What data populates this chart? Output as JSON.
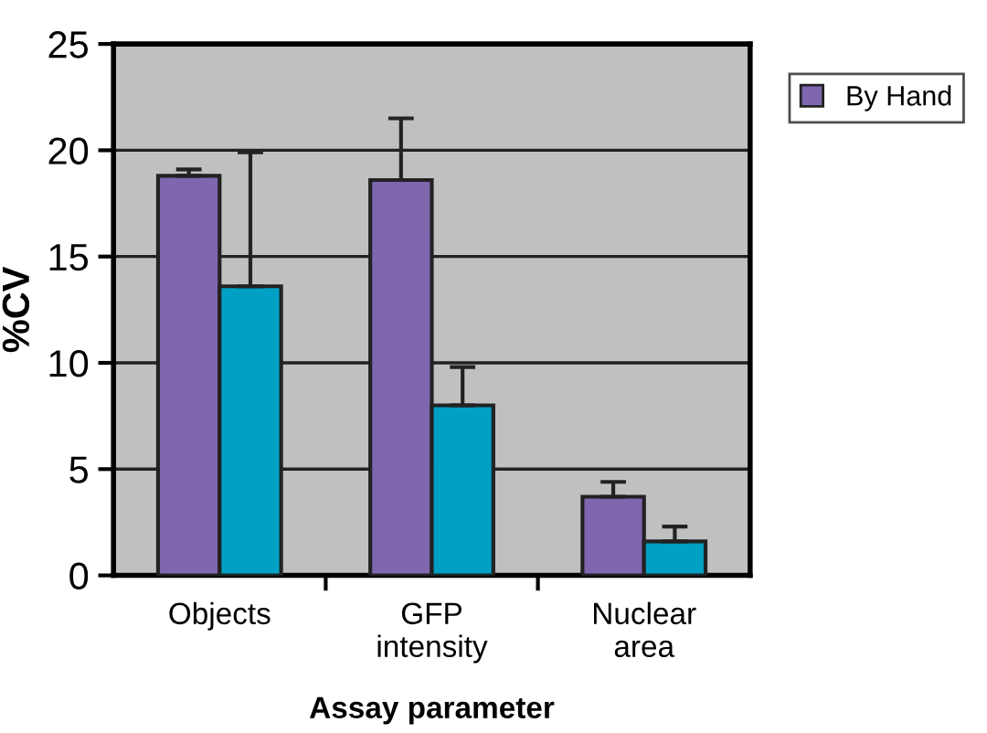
{
  "chart_data": {
    "type": "bar",
    "xlabel": "Assay parameter",
    "ylabel": "%CV",
    "categories": [
      "Objects",
      "GFP\nintensity",
      "Nuclear\narea"
    ],
    "series": [
      {
        "name": "By Hand",
        "color": "#7f66ae",
        "values": [
          18.8,
          18.6,
          3.7
        ],
        "errors": [
          [
            18.8,
            19.1
          ],
          [
            18.6,
            21.5
          ],
          [
            3.7,
            4.4
          ]
        ]
      },
      {
        "color": "#00a0c4",
        "values": [
          13.6,
          8.0,
          1.6
        ],
        "errors": [
          [
            13.6,
            19.9
          ],
          [
            8.0,
            9.8
          ],
          [
            1.6,
            2.3
          ]
        ]
      }
    ],
    "ylim": [
      0,
      25
    ],
    "yticks": [
      0,
      5,
      10,
      15,
      20,
      25
    ],
    "grid": "y",
    "legend": "top right"
  }
}
